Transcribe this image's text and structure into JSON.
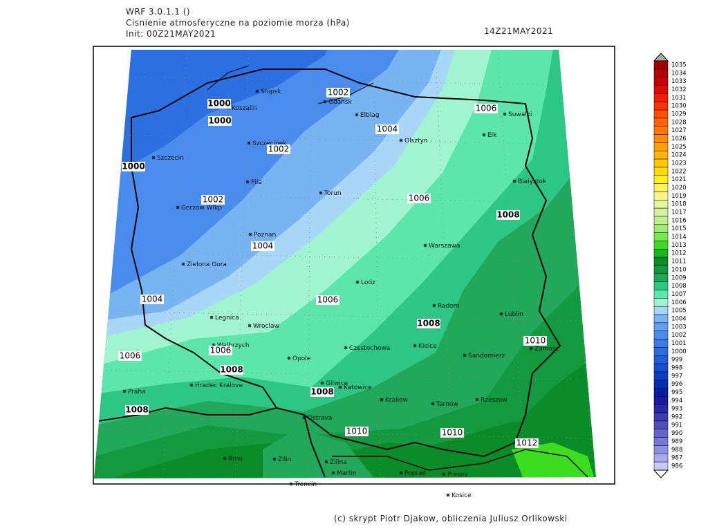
{
  "header": {
    "model": "WRF 3.0.1.1 ()",
    "title": "Cisnienie atmosferyczne na poziomie morza (hPa)",
    "init": "Init: 00Z21MAY2021",
    "valid": "14Z21MAY2021"
  },
  "credit": "(c) skrypt Piotr Djakow, obliczenia Juliusz Orlikowski",
  "cities": [
    "Slupsk",
    "Gdansk",
    "Koszalin",
    "Elblag",
    "Suwalki",
    "Elk",
    "Olsztyn",
    "Szczecinek",
    "Szczecin",
    "Bialystok",
    "Pila",
    "Torun",
    "Gorzow Wlkp",
    "Poznan",
    "Warszawa",
    "Zielona Gora",
    "Lodz",
    "Radom",
    "Lublin",
    "Legnica",
    "Wroclaw",
    "Walbrzych",
    "Zamosc",
    "Kielce",
    "Czestochowa",
    "Opole",
    "Sandomierz",
    "Praha",
    "Hradec Kralove",
    "Gliwice",
    "Katowice",
    "Krakow",
    "Tarnow",
    "Rzeszow",
    "Ostrava",
    "Brno",
    "Zilin",
    "Zilina",
    "Martin",
    "Poprad",
    "Presov",
    "Trencin",
    "Kosice"
  ],
  "contour_labels": [
    1002,
    1000,
    1000,
    1004,
    1006,
    1002,
    1000,
    1002,
    1006,
    1008,
    1004,
    1004,
    1006,
    1008,
    1010,
    1006,
    1006,
    1008,
    1008,
    1008,
    1010,
    1010,
    1012
  ],
  "colorbar": {
    "levels": [
      1035,
      1034,
      1033,
      1032,
      1031,
      1030,
      1029,
      1028,
      1027,
      1026,
      1025,
      1024,
      1023,
      1022,
      1021,
      1020,
      1019,
      1018,
      1017,
      1016,
      1015,
      1014,
      1013,
      1012,
      1011,
      1010,
      1009,
      1008,
      1007,
      1006,
      1005,
      1004,
      1003,
      1002,
      1001,
      1000,
      999,
      998,
      997,
      996,
      995,
      994,
      993,
      992,
      991,
      990,
      989,
      988,
      987,
      986
    ],
    "colors": [
      "#a00000",
      "#b40000",
      "#c80000",
      "#dc0a00",
      "#f01e00",
      "#ff3200",
      "#ff5000",
      "#ff6400",
      "#ff7800",
      "#ff8c00",
      "#ffa000",
      "#ffb400",
      "#ffc800",
      "#ffdc00",
      "#fff01e",
      "#fff55a",
      "#f5f58c",
      "#e6f5a0",
      "#d2f0a0",
      "#bef08c",
      "#a0eb78",
      "#78e650",
      "#3cdc1e",
      "#1eb41e",
      "#0a8c28",
      "#149a3e",
      "#22a85a",
      "#2dc785",
      "#5de6ac",
      "#a0f5d0",
      "#a8d6f7",
      "#78b4f2",
      "#5fa0f0",
      "#4a8ced",
      "#3a7de6",
      "#2b6fe0",
      "#1e5fd8",
      "#1450d0",
      "#0a40c0",
      "#0030b0",
      "#0020a0",
      "#1a1aa0",
      "#2828a8",
      "#3c3cb4",
      "#5050c0",
      "#6464cc",
      "#7878d8",
      "#9090e0",
      "#a8a8ea",
      "#c8c8f4"
    ]
  }
}
